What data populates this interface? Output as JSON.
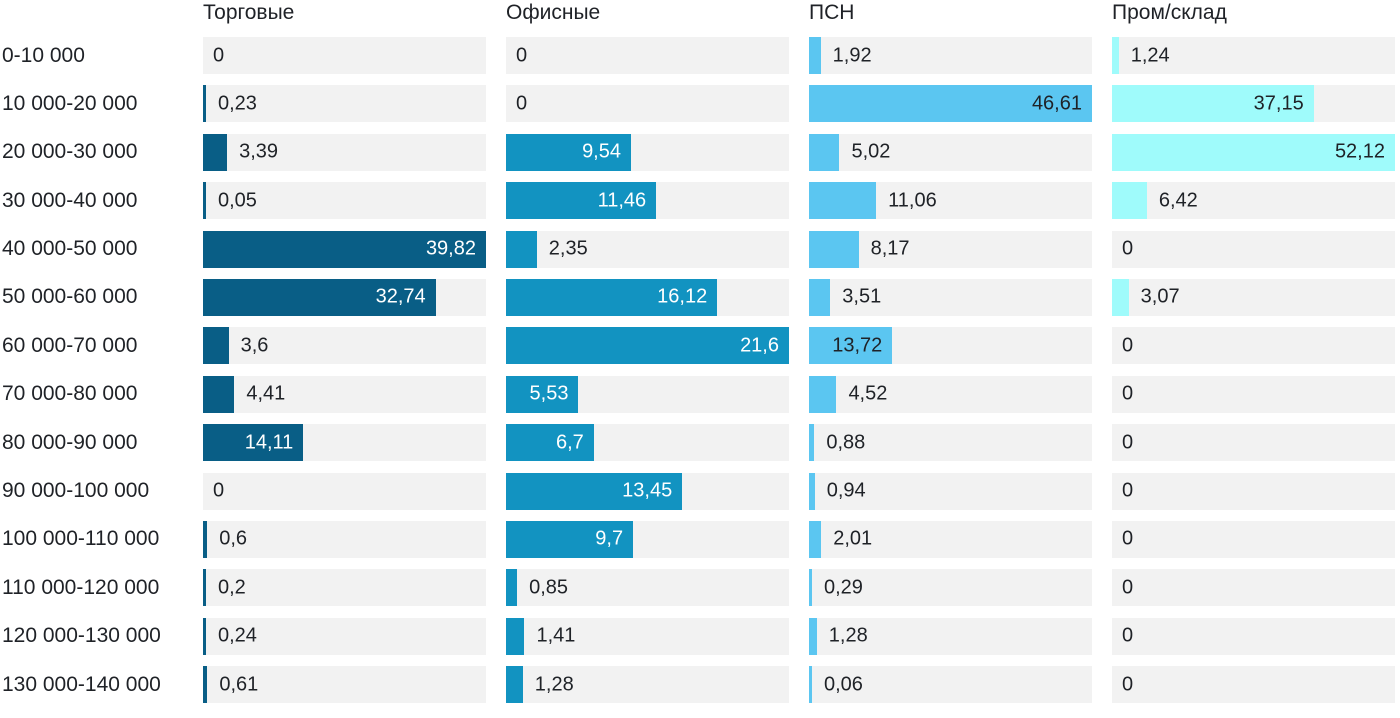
{
  "chart_data": {
    "type": "bar",
    "orientation": "horizontal",
    "title": "",
    "xlabel": "",
    "ylabel": "",
    "grid": false,
    "legend_position": "column-headers-top",
    "track_color": "#f2f2f2",
    "outside_label_color": "#1f2227",
    "categories": [
      "0-10 000",
      "10 000-20 000",
      "20 000-30 000",
      "30 000-40 000",
      "40 000-50 000",
      "50 000-60 000",
      "60 000-70 000",
      "70 000-80 000",
      "80 000-90 000",
      "90 000-100 000",
      "100 000-110 000",
      "110 000-120 000",
      "120 000-130 000",
      "130 000-140 000"
    ],
    "column_max": [
      39.82,
      21.6,
      46.61,
      52.12
    ],
    "series": [
      {
        "name": "Торговые",
        "color": "#095e86",
        "inside_label_color": "#ffffff",
        "values": [
          0,
          0.23,
          3.39,
          0.05,
          39.82,
          32.74,
          3.6,
          4.41,
          14.11,
          0,
          0.6,
          0.2,
          0.24,
          0.61
        ],
        "labels": [
          "0",
          "0,23",
          "3,39",
          "0,05",
          "39,82",
          "32,74",
          "3,6",
          "4,41",
          "14,11",
          "0",
          "0,6",
          "0,2",
          "0,24",
          "0,61"
        ]
      },
      {
        "name": "Офисные",
        "color": "#1293c1",
        "inside_label_color": "#ffffff",
        "values": [
          0,
          0,
          9.54,
          11.46,
          2.35,
          16.12,
          21.6,
          5.53,
          6.7,
          13.45,
          9.7,
          0.85,
          1.41,
          1.28
        ],
        "labels": [
          "0",
          "0",
          "9,54",
          "11,46",
          "2,35",
          "16,12",
          "21,6",
          "5,53",
          "6,7",
          "13,45",
          "9,7",
          "0,85",
          "1,41",
          "1,28"
        ]
      },
      {
        "name": "ПСН",
        "color": "#5bc6f1",
        "inside_label_color": "#1f2227",
        "values": [
          1.92,
          46.61,
          5.02,
          11.06,
          8.17,
          3.51,
          13.72,
          4.52,
          0.88,
          0.94,
          2.01,
          0.29,
          1.28,
          0.06
        ],
        "labels": [
          "1,92",
          "46,61",
          "5,02",
          "11,06",
          "8,17",
          "3,51",
          "13,72",
          "4,52",
          "0,88",
          "0,94",
          "2,01",
          "0,29",
          "1,28",
          "0,06"
        ]
      },
      {
        "name": "Пром/склад",
        "color": "#9ffbfb",
        "inside_label_color": "#1f2227",
        "values": [
          1.24,
          37.15,
          52.12,
          6.42,
          0,
          3.07,
          0,
          0,
          0,
          0,
          0,
          0,
          0,
          0
        ],
        "labels": [
          "1,24",
          "37,15",
          "52,12",
          "6,42",
          "0",
          "3,07",
          "0",
          "0",
          "0",
          "0",
          "0",
          "0",
          "0",
          "0"
        ]
      }
    ]
  }
}
